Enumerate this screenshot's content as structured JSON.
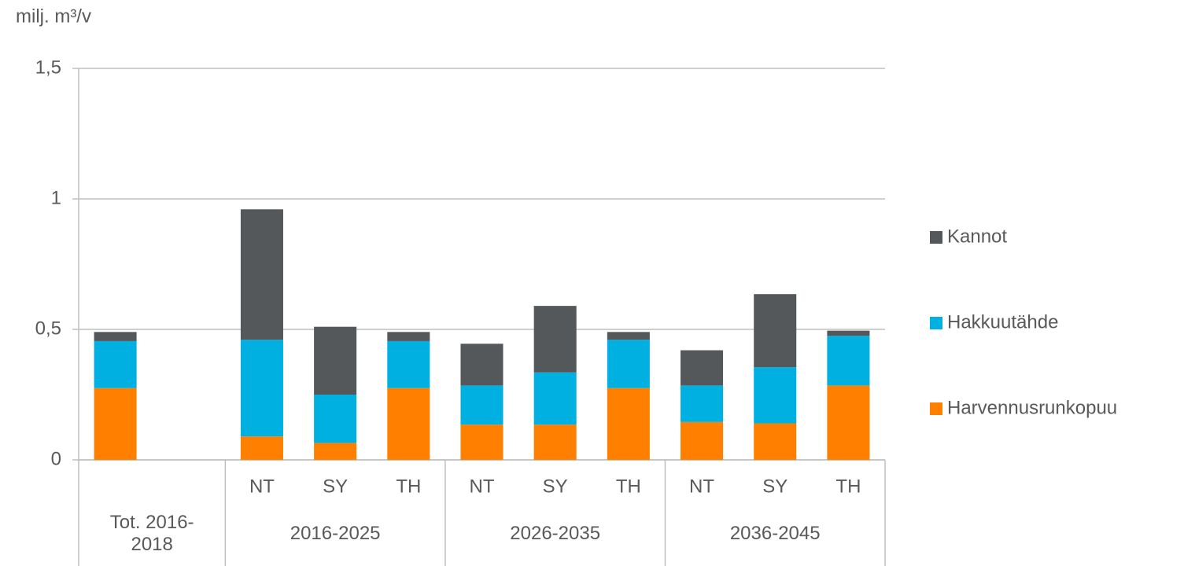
{
  "chart_data": {
    "type": "stacked_bar",
    "axis_title": "milj. m³/v",
    "categories": [
      "",
      null,
      "NT",
      "SY",
      "TH",
      "NT",
      "SY",
      "TH",
      "NT",
      "SY",
      "TH"
    ],
    "groups": [
      {
        "name": "Tot. 2016-2018",
        "size": 2
      },
      {
        "name": "2016-2025",
        "size": 3
      },
      {
        "name": "2026-2035",
        "size": 3
      },
      {
        "name": "2036-2045",
        "size": 3
      }
    ],
    "series": [
      {
        "name": "Harvennusrunkopuu",
        "color": "#ff8000",
        "values": [
          0.275,
          null,
          0.09,
          0.065,
          0.275,
          0.135,
          0.135,
          0.275,
          0.145,
          0.14,
          0.285
        ]
      },
      {
        "name": "Hakkuutähde",
        "color": "#00b0e0",
        "values": [
          0.18,
          null,
          0.37,
          0.185,
          0.18,
          0.15,
          0.2,
          0.185,
          0.14,
          0.215,
          0.19
        ]
      },
      {
        "name": "Kannot",
        "color": "#54585b",
        "values": [
          0.035,
          null,
          0.5,
          0.26,
          0.035,
          0.16,
          0.255,
          0.03,
          0.135,
          0.28,
          0.02
        ]
      }
    ],
    "ylim": [
      0,
      1.5
    ],
    "yticks": [
      0,
      {
        "value": 0.5,
        "label": "0,5"
      },
      1,
      {
        "value": 1.5,
        "label": "1,5"
      }
    ],
    "grid": true,
    "legend": "right"
  }
}
